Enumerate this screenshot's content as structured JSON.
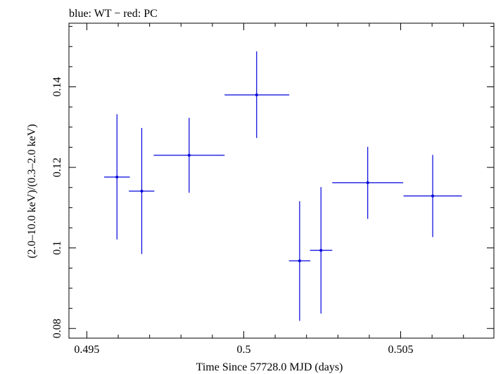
{
  "chart_data": {
    "type": "scatter",
    "title": "blue: WT − red: PC",
    "xlabel": "Time Since 57728.0 MJD (days)",
    "ylabel": "(2.0–10.0 keV)/(0.3–2.0 keV)",
    "xlim": [
      0.49443,
      0.50797
    ],
    "ylim": [
      0.0776,
      0.1558
    ],
    "x_ticks": [
      0.495,
      0.5,
      0.505
    ],
    "x_tick_labels": [
      "0.495",
      "0.5",
      "0.505"
    ],
    "y_ticks": [
      0.08,
      0.1,
      0.12,
      0.14
    ],
    "y_tick_labels": [
      "0.08",
      "0.1",
      "0.12",
      "0.14"
    ],
    "grid": false,
    "colors": {
      "wt": "#0000dd",
      "axes": "#000000"
    },
    "series": [
      {
        "color": "#0000dd",
        "points": [
          {
            "x": 0.49596,
            "xerr_lo": 0.00041,
            "xerr_hi": 0.00041,
            "y": 0.1176,
            "yerr_lo": 0.0155,
            "yerr_hi": 0.0156
          },
          {
            "x": 0.49675,
            "xerr_lo": 0.00041,
            "xerr_hi": 0.0004,
            "y": 0.1141,
            "yerr_lo": 0.0156,
            "yerr_hi": 0.0157
          },
          {
            "x": 0.49826,
            "xerr_lo": 0.00113,
            "xerr_hi": 0.00113,
            "y": 0.123,
            "yerr_lo": 0.0093,
            "yerr_hi": 0.0093
          },
          {
            "x": 0.50041,
            "xerr_lo": 0.00102,
            "xerr_hi": 0.00104,
            "y": 0.138,
            "yerr_lo": 0.0107,
            "yerr_hi": 0.0108
          },
          {
            "x": 0.50178,
            "xerr_lo": 0.00034,
            "xerr_hi": 0.00034,
            "y": 0.0968,
            "yerr_lo": 0.0149,
            "yerr_hi": 0.0148
          },
          {
            "x": 0.50246,
            "xerr_lo": 0.00035,
            "xerr_hi": 0.00036,
            "y": 0.0994,
            "yerr_lo": 0.0157,
            "yerr_hi": 0.0157
          },
          {
            "x": 0.50395,
            "xerr_lo": 0.00113,
            "xerr_hi": 0.00113,
            "y": 0.1162,
            "yerr_lo": 0.009,
            "yerr_hi": 0.0089
          },
          {
            "x": 0.50602,
            "xerr_lo": 0.00093,
            "xerr_hi": 0.00093,
            "y": 0.1129,
            "yerr_lo": 0.0102,
            "yerr_hi": 0.0102
          }
        ]
      }
    ]
  }
}
